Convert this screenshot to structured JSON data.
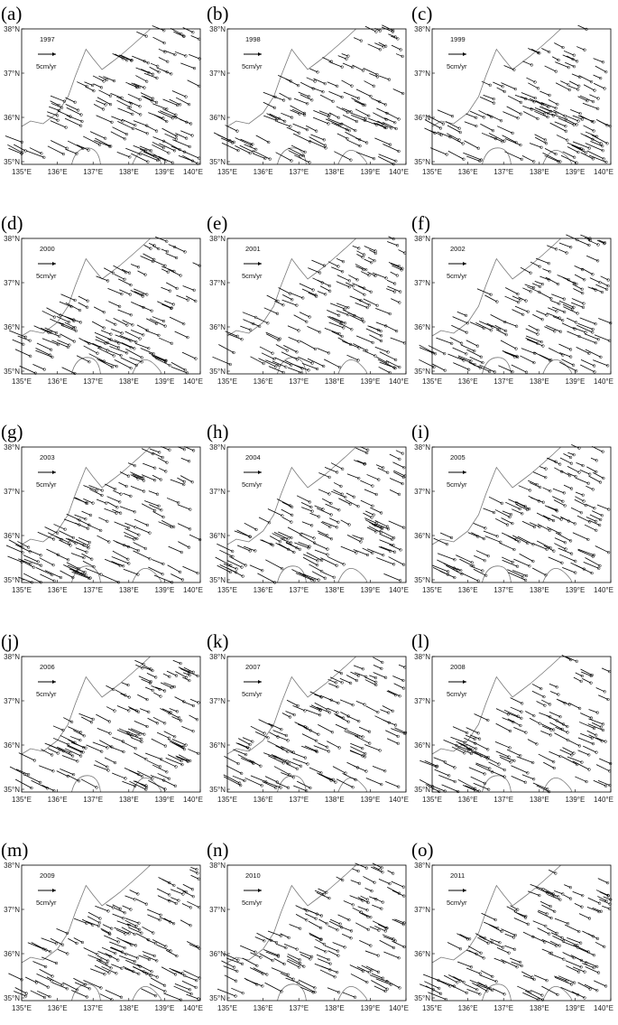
{
  "lat_labels": [
    "38°N",
    "37°N",
    "36°N",
    "35°N"
  ],
  "lon_labels": [
    "135°E",
    "136°E",
    "137°E",
    "138°E",
    "139°E",
    "140°E"
  ],
  "scale_label": "5cm/yr",
  "panels": [
    {
      "label": "(a)",
      "year": "1997"
    },
    {
      "label": "(b)",
      "year": "1998"
    },
    {
      "label": "(c)",
      "year": "1999"
    },
    {
      "label": "(d)",
      "year": "2000"
    },
    {
      "label": "(e)",
      "year": "2001"
    },
    {
      "label": "(f)",
      "year": "2002"
    },
    {
      "label": "(g)",
      "year": "2003"
    },
    {
      "label": "(h)",
      "year": "2004"
    },
    {
      "label": "(i)",
      "year": "2005"
    },
    {
      "label": "(j)",
      "year": "2006"
    },
    {
      "label": "(k)",
      "year": "2007"
    },
    {
      "label": "(l)",
      "year": "2008"
    },
    {
      "label": "(m)",
      "year": "2009"
    },
    {
      "label": "(n)",
      "year": "2010"
    },
    {
      "label": "(o)",
      "year": "2011"
    }
  ]
}
